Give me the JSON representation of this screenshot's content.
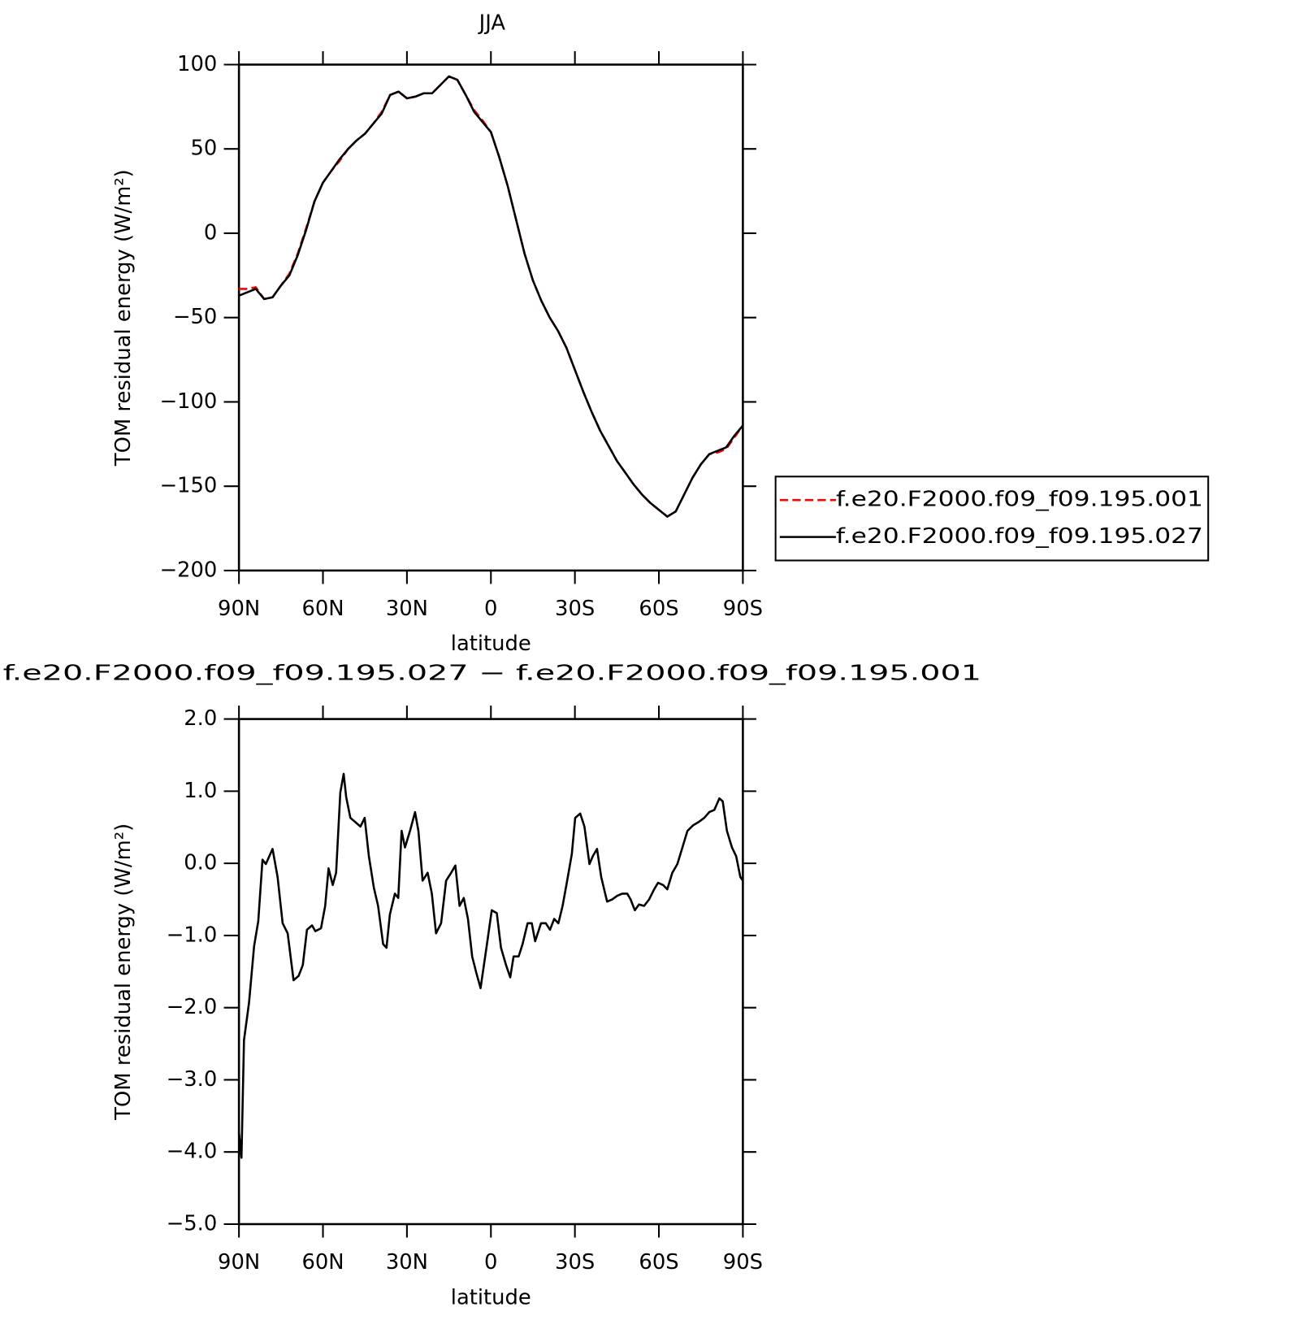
{
  "chart_data": [
    {
      "type": "line",
      "title": "JJA",
      "x_label": "latitude",
      "y_label": "TOM residual energy (W/m²)",
      "x": [
        90,
        87,
        84,
        81,
        78,
        75,
        72,
        69,
        66,
        63,
        60,
        57,
        54,
        51,
        48,
        45,
        42,
        39,
        36,
        33,
        30,
        27,
        24,
        21,
        18,
        15,
        12,
        9,
        6,
        3,
        0,
        -3,
        -6,
        -9,
        -12,
        -15,
        -18,
        -21,
        -24,
        -27,
        -30,
        -33,
        -36,
        -39,
        -42,
        -45,
        -48,
        -51,
        -54,
        -57,
        -60,
        -63,
        -66,
        -69,
        -72,
        -75,
        -78,
        -81,
        -84,
        -87,
        -90
      ],
      "series": [
        {
          "name": "f.e20.F2000.f09_f09.195.001",
          "color": "#ff0000",
          "dashed": true,
          "values": [
            -33,
            -33,
            -32,
            -39,
            -38,
            -31,
            -24,
            -12,
            3,
            19,
            30,
            37,
            43,
            50,
            55,
            59,
            65,
            72,
            82,
            84,
            80,
            81,
            83,
            83,
            88,
            93,
            91,
            82,
            73,
            67,
            60,
            45,
            28,
            8,
            -12,
            -28,
            -40,
            -50,
            -58,
            -68,
            -81,
            -94,
            -106,
            -117,
            -126,
            -135,
            -142,
            -149,
            -155,
            -160,
            -164,
            -168,
            -165,
            -155,
            -145,
            -137,
            -131,
            -130,
            -128,
            -121,
            -114
          ]
        },
        {
          "name": "f.e20.F2000.f09_f09.195.027",
          "color": "#000000",
          "dashed": false,
          "values": [
            -37,
            -35,
            -33,
            -39,
            -38,
            -31,
            -25,
            -13,
            2,
            19,
            30,
            37,
            44,
            50,
            55,
            59,
            65,
            71,
            82,
            84,
            80,
            81,
            83,
            83,
            88,
            93,
            91,
            82,
            72,
            66,
            60,
            45,
            28,
            8,
            -12,
            -28,
            -40,
            -50,
            -58,
            -68,
            -81,
            -94,
            -106,
            -117,
            -126,
            -135,
            -142,
            -149,
            -155,
            -160,
            -164,
            -168,
            -165,
            -155,
            -145,
            -137,
            -131,
            -129,
            -127,
            -120,
            -114
          ]
        }
      ],
      "xlim": [
        90,
        -90
      ],
      "xticks": [
        {
          "value": 90,
          "label": "90N"
        },
        {
          "value": 60,
          "label": "60N"
        },
        {
          "value": 30,
          "label": "30N"
        },
        0,
        {
          "value": -30,
          "label": "30S"
        },
        {
          "value": -60,
          "label": "60S"
        },
        {
          "value": -90,
          "label": "90S"
        }
      ],
      "ylim": [
        -200,
        100
      ],
      "yticks": [
        100,
        50,
        0,
        {
          "value": -50,
          "label": "−50"
        },
        {
          "value": -100,
          "label": "−100"
        },
        {
          "value": -150,
          "label": "−150"
        },
        {
          "value": -200,
          "label": "−200"
        }
      ],
      "legend": "right"
    },
    {
      "type": "line",
      "title": "f.e20.F2000.f09_f09.195.027 − f.e20.F2000.f09_f09.195.001",
      "x_label": "latitude",
      "y_label": "TOM residual energy (W/m²)",
      "x": [
        90,
        89.1,
        88.2,
        86.4,
        84.6,
        83.1,
        81.6,
        80.4,
        78,
        76.2,
        74.4,
        72.6,
        70.5,
        68.7,
        67.2,
        65.7,
        63.9,
        62.7,
        60.7,
        59.2,
        58,
        56.5,
        55.3,
        53.8,
        52.6,
        51.7,
        50.2,
        48.4,
        46.6,
        45.1,
        43.6,
        41.8,
        40.3,
        38.5,
        37.3,
        36.1,
        34.3,
        33.1,
        31.9,
        30.7,
        28.9,
        27.1,
        25.9,
        24.4,
        22.6,
        21.1,
        19.6,
        17.8,
        16,
        14.2,
        12.7,
        11.2,
        9.7,
        8.2,
        6.7,
        5.2,
        3.7,
        1.6,
        -0.3,
        -2.1,
        -3.6,
        -5.4,
        -6.9,
        -8.1,
        -9.9,
        -11.3,
        -13.1,
        -14.6,
        -15.8,
        -17.9,
        -19.6,
        -21.1,
        -22.6,
        -24.1,
        -25.6,
        -27.1,
        -28.9,
        -30.1,
        -31.9,
        -33.4,
        -35.2,
        -36.4,
        -37.9,
        -39.4,
        -41.5,
        -43.3,
        -45.1,
        -46.9,
        -48.7,
        -49.9,
        -51.4,
        -52.9,
        -54.7,
        -56.5,
        -58.3,
        -59.7,
        -61.5,
        -63,
        -64.8,
        -66.6,
        -68.4,
        -70.2,
        -72.3,
        -74.1,
        -76.2,
        -78,
        -79.8,
        -81.6,
        -82.8,
        -84.3,
        -86.1,
        -87.6,
        -89.1,
        -90
      ],
      "values": [
        -3.73,
        -4.08,
        -2.45,
        -1.93,
        -1.15,
        -0.8,
        0.05,
        -0.01,
        0.2,
        -0.19,
        -0.83,
        -0.97,
        -1.62,
        -1.56,
        -1.41,
        -0.92,
        -0.86,
        -0.94,
        -0.9,
        -0.59,
        -0.07,
        -0.3,
        -0.13,
        0.98,
        1.24,
        0.92,
        0.63,
        0.57,
        0.51,
        0.63,
        0.1,
        -0.34,
        -0.59,
        -1.12,
        -1.17,
        -0.71,
        -0.42,
        -0.48,
        0.45,
        0.22,
        0.45,
        0.71,
        0.45,
        -0.24,
        -0.13,
        -0.42,
        -0.97,
        -0.83,
        -0.24,
        -0.13,
        -0.03,
        -0.59,
        -0.48,
        -0.77,
        -1.29,
        -1.52,
        -1.73,
        -1.17,
        -0.65,
        -0.69,
        -1.17,
        -1.41,
        -1.58,
        -1.29,
        -1.29,
        -1.12,
        -0.83,
        -0.83,
        -1.08,
        -0.83,
        -0.83,
        -0.92,
        -0.77,
        -0.83,
        -0.59,
        -0.27,
        0.13,
        0.63,
        0.69,
        0.51,
        -0.01,
        0.1,
        0.2,
        -0.19,
        -0.53,
        -0.5,
        -0.45,
        -0.42,
        -0.42,
        -0.5,
        -0.65,
        -0.57,
        -0.59,
        -0.5,
        -0.36,
        -0.27,
        -0.3,
        -0.36,
        -0.13,
        -0.01,
        0.22,
        0.45,
        0.53,
        0.57,
        0.63,
        0.71,
        0.74,
        0.9,
        0.86,
        0.45,
        0.22,
        0.1,
        -0.19,
        -0.24
      ],
      "color": "#000000",
      "xlim": [
        90,
        -90
      ],
      "xticks": [
        {
          "value": 90,
          "label": "90N"
        },
        {
          "value": 60,
          "label": "60N"
        },
        {
          "value": 30,
          "label": "30N"
        },
        0,
        {
          "value": -30,
          "label": "30S"
        },
        {
          "value": -60,
          "label": "60S"
        },
        {
          "value": -90,
          "label": "90S"
        }
      ],
      "ylim": [
        -5,
        2
      ],
      "yticks": [
        {
          "value": 2,
          "label": "2.0"
        },
        {
          "value": 1,
          "label": "1.0"
        },
        {
          "value": 0,
          "label": "0.0"
        },
        {
          "value": -1,
          "label": "−1.0"
        },
        {
          "value": -2,
          "label": "−2.0"
        },
        {
          "value": -3,
          "label": "−3.0"
        },
        {
          "value": -4,
          "label": "−4.0"
        },
        {
          "value": -5,
          "label": "−5.0"
        }
      ]
    }
  ]
}
